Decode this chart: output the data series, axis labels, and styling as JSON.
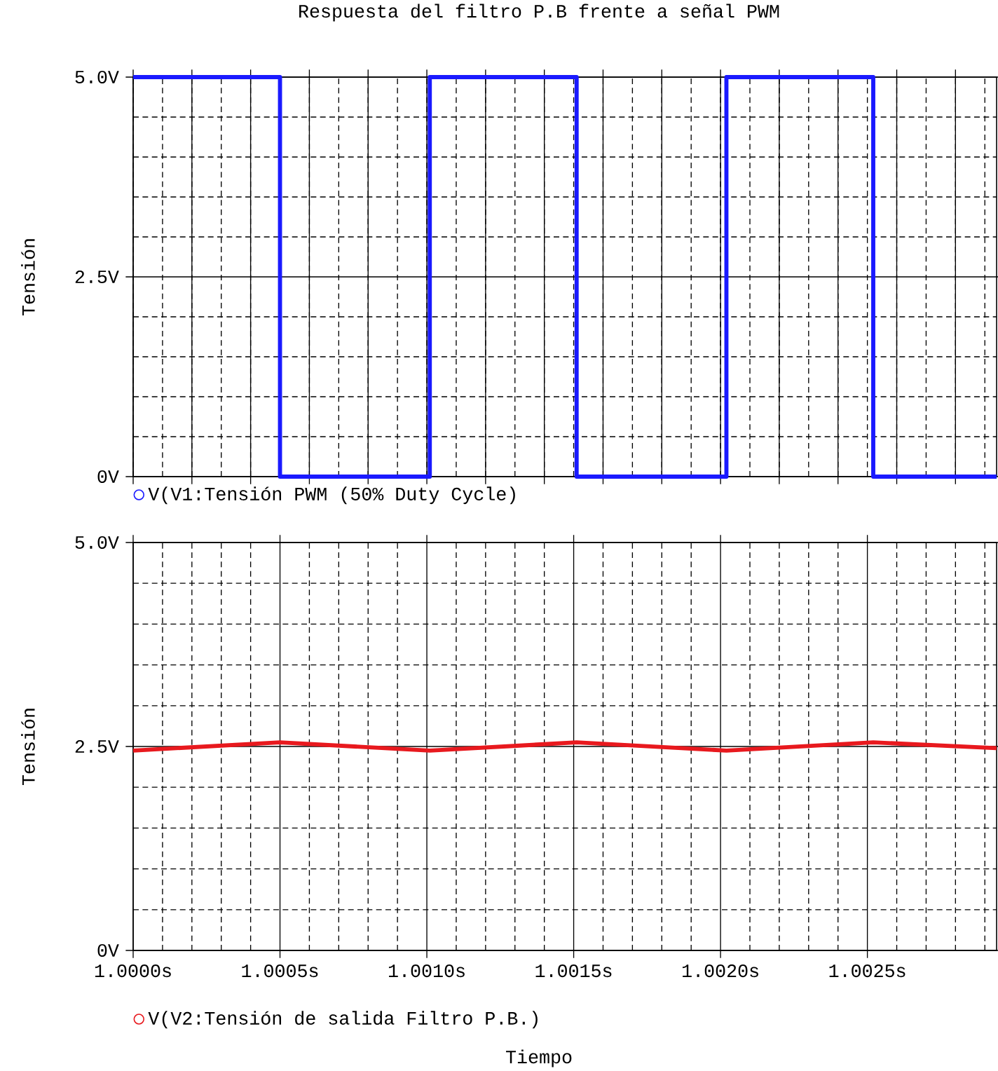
{
  "chart_data": [
    {
      "type": "line",
      "title": "Respuesta del filtro P.B frente a señal PWM",
      "ylabel": "Tensión",
      "x": [
        1.0,
        1.0005,
        1.0005,
        1.00101,
        1.00101,
        1.00151,
        1.00151,
        1.00202,
        1.00202,
        1.00252,
        1.00252,
        1.00294
      ],
      "series": [
        {
          "name": "V(V1:Tensión PWM (50% Duty Cycle)",
          "color": "#1a1aff",
          "values": [
            5,
            5,
            0,
            0,
            5,
            5,
            0,
            0,
            5,
            5,
            0,
            0
          ]
        }
      ],
      "xlim": [
        1.0,
        1.00294
      ],
      "ylim": [
        0,
        5
      ],
      "xticks": [
        {
          "value": 1.0,
          "label": null
        },
        {
          "value": 1.0005,
          "label": null
        },
        {
          "value": 1.001,
          "label": null
        },
        {
          "value": 1.0015,
          "label": null
        },
        {
          "value": 1.002,
          "label": null
        },
        {
          "value": 1.0025,
          "label": null
        },
        {
          "value": 1.0001,
          "label": null
        },
        {
          "value": 1.0002,
          "label": null
        },
        {
          "value": 1.0003,
          "label": null
        },
        {
          "value": 1.0004,
          "label": null
        },
        {
          "value": 1.0006,
          "label": null
        },
        {
          "value": 1.0007,
          "label": null
        },
        {
          "value": 1.0008,
          "label": null
        },
        {
          "value": 1.0009,
          "label": null
        },
        {
          "value": 1.0011,
          "label": null
        },
        {
          "value": 1.0012,
          "label": null
        },
        {
          "value": 1.0013,
          "label": null
        },
        {
          "value": 1.0014,
          "label": null
        },
        {
          "value": 1.0016,
          "label": null
        },
        {
          "value": 1.0017,
          "label": null
        },
        {
          "value": 1.0018,
          "label": null
        },
        {
          "value": 1.0019,
          "label": null
        },
        {
          "value": 1.0021,
          "label": null
        },
        {
          "value": 1.0022,
          "label": null
        },
        {
          "value": 1.0023,
          "label": null
        },
        {
          "value": 1.0024,
          "label": null
        },
        {
          "value": 1.0026,
          "label": null
        },
        {
          "value": 1.0027,
          "label": null
        },
        {
          "value": 1.0028,
          "label": null
        },
        {
          "value": 1.0029,
          "label": null
        }
      ],
      "yticks": [
        {
          "value": 0,
          "label": "0V"
        },
        {
          "value": 2.5,
          "label": "2.5V"
        },
        {
          "value": 5,
          "label": "5.0V"
        },
        {
          "value": 0.5,
          "label": null
        },
        {
          "value": 1,
          "label": null
        },
        {
          "value": 1.5,
          "label": null
        },
        {
          "value": 2,
          "label": null
        },
        {
          "value": 3,
          "label": null
        },
        {
          "value": 3.5,
          "label": null
        },
        {
          "value": 4,
          "label": null
        },
        {
          "value": 4.5,
          "label": null
        }
      ],
      "grid": true,
      "legend": "bottom left",
      "tick_labels": "y"
    },
    {
      "type": "line",
      "xlabel": "Tiempo",
      "ylabel": "Tensión",
      "x": [
        1.0,
        1.0005,
        1.00101,
        1.00151,
        1.00202,
        1.00252,
        1.00294
      ],
      "series": [
        {
          "name": "V(V2:Tensión de salida Filtro P.B.)",
          "color": "#e8191e",
          "values": [
            2.45,
            2.55,
            2.45,
            2.55,
            2.45,
            2.55,
            2.48
          ]
        }
      ],
      "xlim": [
        1.0,
        1.00294
      ],
      "ylim": [
        0,
        5
      ],
      "xticks": [
        {
          "value": 1.0,
          "label": "1.0000s"
        },
        {
          "value": 1.0005,
          "label": "1.0005s"
        },
        {
          "value": 1.001,
          "label": "1.0010s"
        },
        {
          "value": 1.0015,
          "label": "1.0015s"
        },
        {
          "value": 1.002,
          "label": "1.0020s"
        },
        {
          "value": 1.0025,
          "label": "1.0025s"
        },
        {
          "value": 1.0001,
          "label": null
        },
        {
          "value": 1.0002,
          "label": null
        },
        {
          "value": 1.0003,
          "label": null
        },
        {
          "value": 1.0004,
          "label": null
        },
        {
          "value": 1.0006,
          "label": null
        },
        {
          "value": 1.0007,
          "label": null
        },
        {
          "value": 1.0008,
          "label": null
        },
        {
          "value": 1.0009,
          "label": null
        },
        {
          "value": 1.0011,
          "label": null
        },
        {
          "value": 1.0012,
          "label": null
        },
        {
          "value": 1.0013,
          "label": null
        },
        {
          "value": 1.0014,
          "label": null
        },
        {
          "value": 1.0016,
          "label": null
        },
        {
          "value": 1.0017,
          "label": null
        },
        {
          "value": 1.0018,
          "label": null
        },
        {
          "value": 1.0019,
          "label": null
        },
        {
          "value": 1.0021,
          "label": null
        },
        {
          "value": 1.0022,
          "label": null
        },
        {
          "value": 1.0023,
          "label": null
        },
        {
          "value": 1.0024,
          "label": null
        },
        {
          "value": 1.0026,
          "label": null
        },
        {
          "value": 1.0027,
          "label": null
        },
        {
          "value": 1.0028,
          "label": null
        },
        {
          "value": 1.0029,
          "label": null
        }
      ],
      "yticks": [
        {
          "value": 0,
          "label": "0V"
        },
        {
          "value": 2.5,
          "label": "2.5V"
        },
        {
          "value": 5,
          "label": "5.0V"
        },
        {
          "value": 0.5,
          "label": null
        },
        {
          "value": 1,
          "label": null
        },
        {
          "value": 1.5,
          "label": null
        },
        {
          "value": 2,
          "label": null
        },
        {
          "value": 3,
          "label": null
        },
        {
          "value": 3.5,
          "label": null
        },
        {
          "value": 4,
          "label": null
        },
        {
          "value": 4.5,
          "label": null
        }
      ],
      "grid": true,
      "legend": "bottom left"
    }
  ]
}
